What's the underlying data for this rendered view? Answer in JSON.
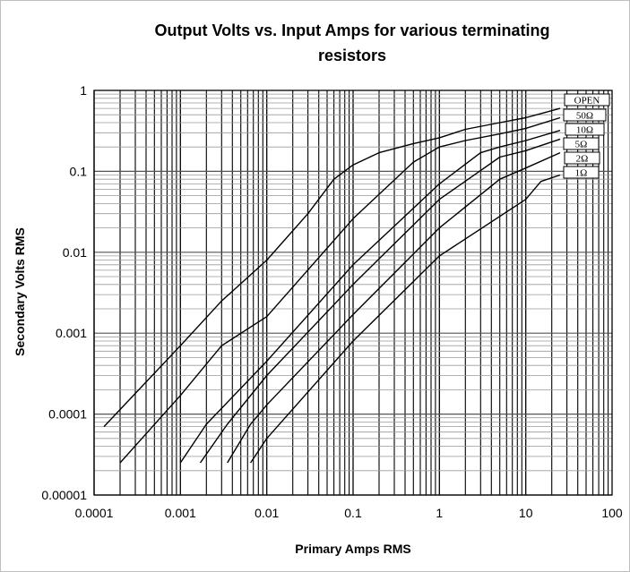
{
  "chart_data": {
    "type": "line",
    "title_line1": "Output Volts vs. Input Amps for various terminating",
    "title_line2": "resistors",
    "xlabel": "Primary Amps RMS",
    "ylabel": "Secondary Volts RMS",
    "x_scale": "log",
    "y_scale": "log",
    "xlim": [
      0.0001,
      100
    ],
    "ylim": [
      1e-05,
      1
    ],
    "x_ticks": [
      "0.0001",
      "0.001",
      "0.01",
      "0.1",
      "1",
      "10",
      "100"
    ],
    "y_ticks": [
      "0.00001",
      "0.0001",
      "0.001",
      "0.01",
      "0.1",
      "1"
    ],
    "grid": true,
    "legend": "right, at line ends",
    "series": [
      {
        "name": "OPEN",
        "x": [
          0.00013,
          0.001,
          0.003,
          0.01,
          0.03,
          0.06,
          0.1,
          0.2,
          0.5,
          1,
          2,
          5,
          10,
          25
        ],
        "y": [
          7e-05,
          0.0007,
          0.0025,
          0.008,
          0.03,
          0.08,
          0.12,
          0.17,
          0.22,
          0.26,
          0.33,
          0.4,
          0.46,
          0.6
        ]
      },
      {
        "name": "50Ω",
        "x": [
          0.0002,
          0.001,
          0.003,
          0.01,
          0.1,
          0.5,
          1,
          2,
          5,
          10,
          25
        ],
        "y": [
          2.5e-05,
          0.00017,
          0.0007,
          0.0016,
          0.026,
          0.13,
          0.2,
          0.24,
          0.29,
          0.34,
          0.46
        ]
      },
      {
        "name": "10Ω",
        "x": [
          0.001,
          0.002,
          0.01,
          0.1,
          1,
          3,
          5,
          10,
          25
        ],
        "y": [
          2.5e-05,
          7.5e-05,
          0.00045,
          0.007,
          0.07,
          0.17,
          0.2,
          0.24,
          0.32
        ]
      },
      {
        "name": "5Ω",
        "x": [
          0.0017,
          0.0035,
          0.01,
          0.1,
          1,
          5,
          10,
          25
        ],
        "y": [
          2.5e-05,
          7.5e-05,
          0.0003,
          0.004,
          0.045,
          0.15,
          0.18,
          0.25
        ]
      },
      {
        "name": "2Ω",
        "x": [
          0.0035,
          0.0065,
          0.01,
          0.1,
          1,
          5,
          10,
          25
        ],
        "y": [
          2.5e-05,
          7.5e-05,
          0.00013,
          0.0017,
          0.02,
          0.08,
          0.11,
          0.17
        ]
      },
      {
        "name": "1Ω",
        "x": [
          0.0065,
          0.01,
          0.1,
          1,
          10,
          15,
          25
        ],
        "y": [
          2.5e-05,
          5e-05,
          0.0008,
          0.009,
          0.045,
          0.075,
          0.09
        ]
      }
    ],
    "legend_labels": [
      "OPEN",
      "50Ω",
      "10Ω",
      "5Ω",
      "2Ω",
      "1Ω"
    ]
  }
}
